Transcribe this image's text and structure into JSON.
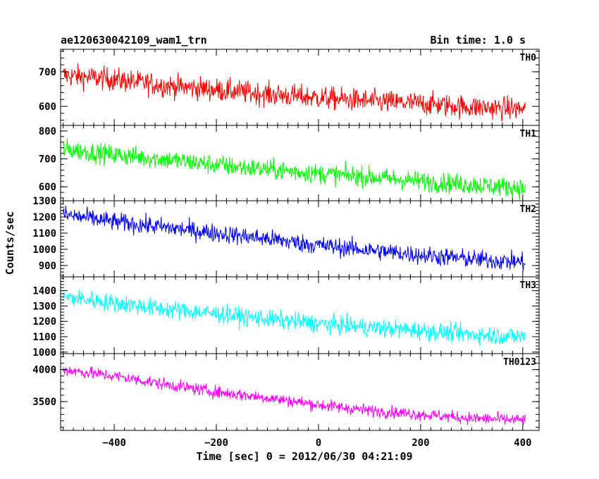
{
  "header": {
    "left_title": "ae120630042109_wam1_trn",
    "right_title": "Bin time: 1.0 s"
  },
  "axes": {
    "ylabel": "Counts/sec",
    "xlabel": "Time [sec] 0 = 2012/06/30 04:21:09"
  },
  "chart_data": {
    "type": "line",
    "xlim": [
      -505,
      432
    ],
    "x_ticks": [
      -400,
      -200,
      0,
      200,
      400
    ],
    "x_tick_labels": [
      "−400",
      "−200",
      "0",
      "200",
      "400"
    ],
    "x_start": -500,
    "x_end": 405,
    "panels": [
      {
        "name": "TH0",
        "color": "#ff0000",
        "ylim": [
          545,
          765
        ],
        "y_ticks": [
          600,
          700
        ],
        "y_tick_labels": [
          "600",
          "700"
        ],
        "trend": [
          [
            -500,
            690
          ],
          [
            -400,
            678
          ],
          [
            -300,
            660
          ],
          [
            -200,
            648
          ],
          [
            -100,
            635
          ],
          [
            0,
            625
          ],
          [
            100,
            615
          ],
          [
            200,
            608
          ],
          [
            300,
            598
          ],
          [
            405,
            592
          ]
        ],
        "noise": 28
      },
      {
        "name": "TH1",
        "color": "#00ff00",
        "ylim": [
          550,
          820
        ],
        "y_ticks": [
          600,
          700,
          800
        ],
        "y_tick_labels": [
          "600",
          "700",
          "800"
        ],
        "trend": [
          [
            -500,
            735
          ],
          [
            -400,
            715
          ],
          [
            -300,
            698
          ],
          [
            -200,
            678
          ],
          [
            -100,
            662
          ],
          [
            0,
            648
          ],
          [
            100,
            635
          ],
          [
            200,
            620
          ],
          [
            300,
            608
          ],
          [
            405,
            595
          ]
        ],
        "noise": 30
      },
      {
        "name": "TH2",
        "color": "#0000ff",
        "ylim": [
          830,
          1300
        ],
        "y_ticks": [
          900,
          1000,
          1100,
          1200,
          1300
        ],
        "y_tick_labels": [
          "900",
          "1000",
          "1100",
          "1200",
          "1300"
        ],
        "trend": [
          [
            -500,
            1215
          ],
          [
            -400,
            1170
          ],
          [
            -300,
            1135
          ],
          [
            -200,
            1100
          ],
          [
            -100,
            1065
          ],
          [
            0,
            1025
          ],
          [
            100,
            995
          ],
          [
            200,
            965
          ],
          [
            300,
            940
          ],
          [
            405,
            920
          ]
        ],
        "noise": 48
      },
      {
        "name": "TH3",
        "color": "#00ffff",
        "ylim": [
          990,
          1490
        ],
        "y_ticks": [
          1000,
          1100,
          1200,
          1300,
          1400
        ],
        "y_tick_labels": [
          "1000",
          "1100",
          "1200",
          "1300",
          "1400"
        ],
        "trend": [
          [
            -500,
            1360
          ],
          [
            -400,
            1320
          ],
          [
            -300,
            1280
          ],
          [
            -200,
            1250
          ],
          [
            -100,
            1215
          ],
          [
            0,
            1185
          ],
          [
            100,
            1160
          ],
          [
            200,
            1140
          ],
          [
            300,
            1115
          ],
          [
            405,
            1100
          ]
        ],
        "noise": 50
      },
      {
        "name": "TH0123",
        "color": "#ff00ff",
        "ylim": [
          3050,
          4250
        ],
        "y_ticks": [
          3500,
          4000
        ],
        "y_tick_labels": [
          "3500",
          "4000"
        ],
        "trend": [
          [
            -500,
            4000
          ],
          [
            -400,
            3900
          ],
          [
            -300,
            3770
          ],
          [
            -200,
            3650
          ],
          [
            -100,
            3560
          ],
          [
            0,
            3450
          ],
          [
            100,
            3360
          ],
          [
            200,
            3300
          ],
          [
            300,
            3240
          ],
          [
            405,
            3210
          ]
        ],
        "noise": 80
      }
    ]
  }
}
